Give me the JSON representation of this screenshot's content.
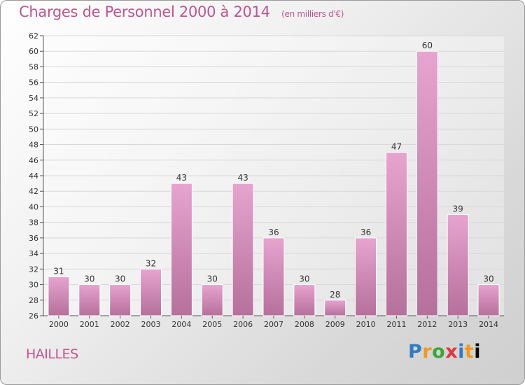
{
  "header": {
    "title": "Charges de Personnel 2000 à 2014",
    "subtitle": "(en milliers d'€)"
  },
  "footer": {
    "commune": "HAILLES",
    "logo_letters": [
      "P",
      "r",
      "o",
      "x",
      "i",
      "t",
      "i"
    ]
  },
  "colors": {
    "title": "#c0558e",
    "bar_top": "#e6a4cf",
    "bar_bottom": "#b5709b",
    "axis": "#555555",
    "grid": "#d8d8d8"
  },
  "chart_data": {
    "type": "bar",
    "title": "Charges de Personnel 2000 à 2014",
    "subtitle": "(en milliers d'€)",
    "categories": [
      "2000",
      "2001",
      "2002",
      "2003",
      "2004",
      "2005",
      "2006",
      "2007",
      "2008",
      "2009",
      "2010",
      "2011",
      "2012",
      "2013",
      "2014"
    ],
    "values": [
      31,
      30,
      30,
      32,
      43,
      30,
      43,
      36,
      30,
      28,
      36,
      47,
      60,
      39,
      30
    ],
    "ylim": [
      26,
      62
    ],
    "ytick_step": 2,
    "xlabel": "",
    "ylabel": "",
    "grid": true
  }
}
